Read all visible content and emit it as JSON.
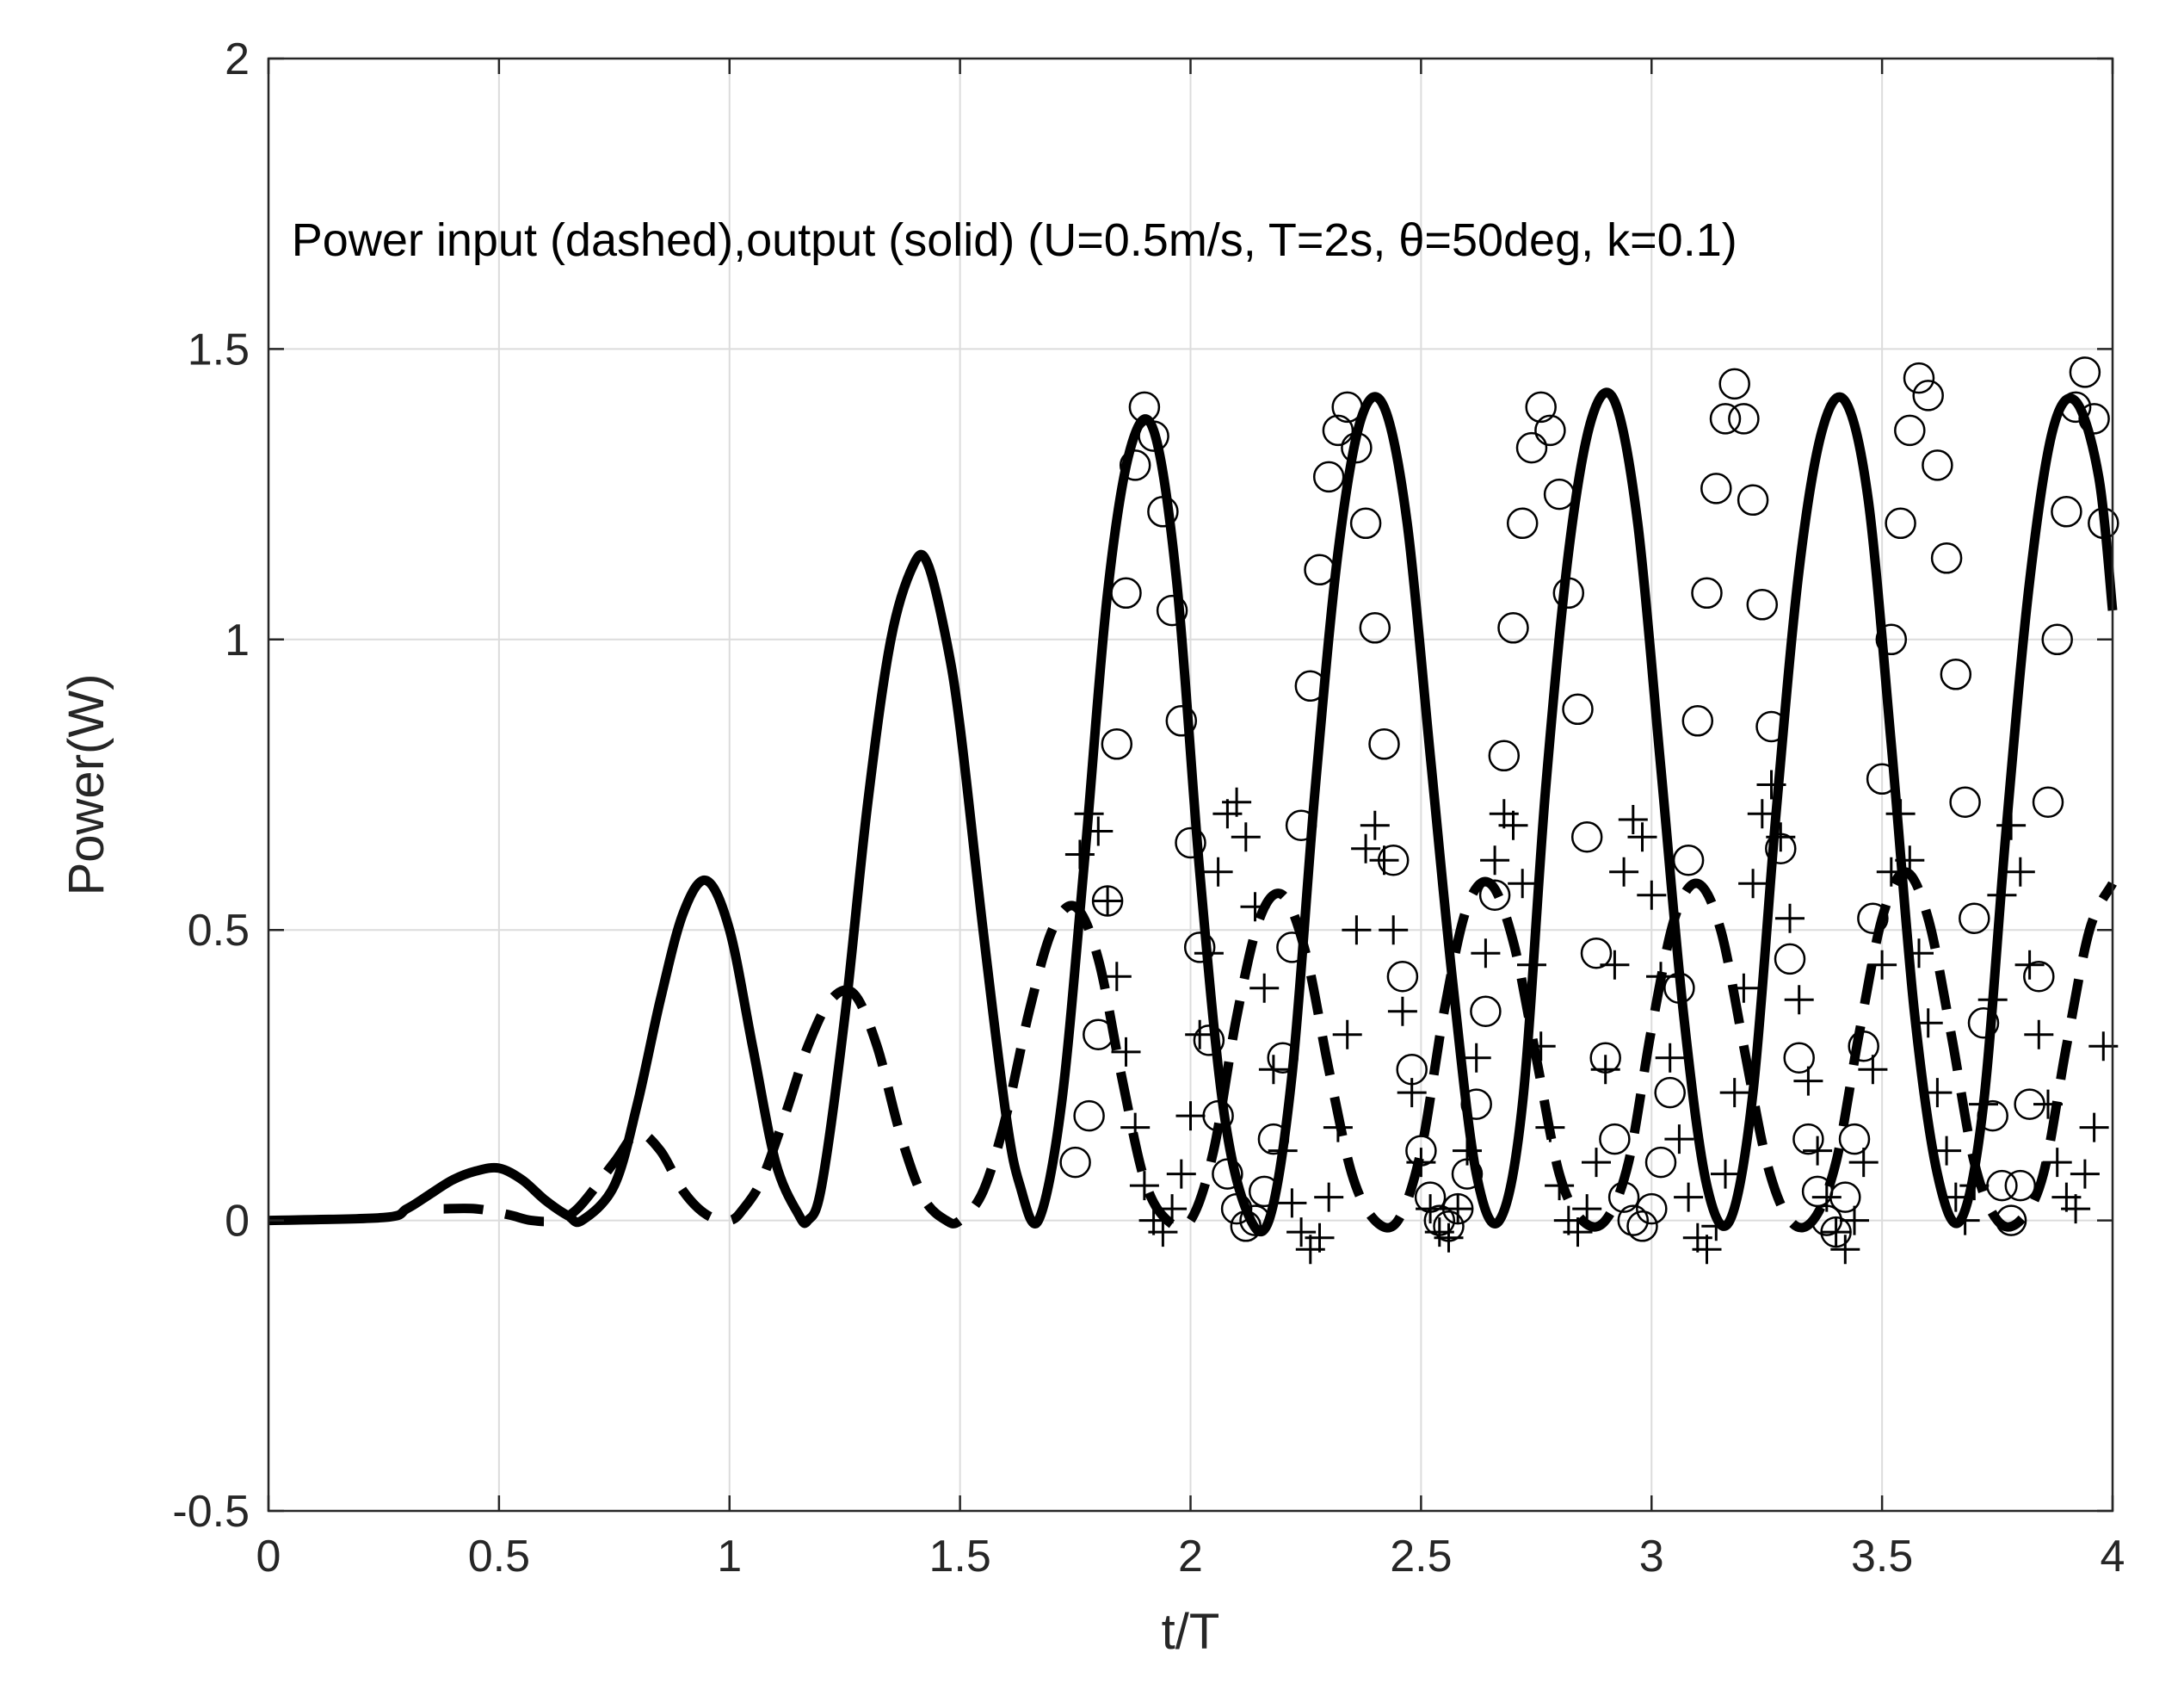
{
  "chart_data": {
    "type": "line",
    "title": "",
    "xlabel": "t/T",
    "ylabel": "Power(W)",
    "annotation": "Power input (dashed),output (solid) (U=0.5m/s, T=2s, θ=50deg, k=0.1)",
    "xlim": [
      0,
      4
    ],
    "ylim": [
      -0.5,
      2
    ],
    "xticks": [
      0,
      0.5,
      1,
      1.5,
      2,
      2.5,
      3,
      3.5,
      4
    ],
    "xtick_labels": [
      "0",
      "0.5",
      "1",
      "1.5",
      "2",
      "2.5",
      "3",
      "3.5",
      "4"
    ],
    "yticks": [
      -0.5,
      0,
      0.5,
      1,
      1.5,
      2
    ],
    "ytick_labels": [
      "-0.5",
      "0",
      "0.5",
      "1",
      "1.5",
      "2"
    ],
    "grid": true,
    "colors": {
      "lines": "#000000",
      "grid": "#dcdcdc",
      "axes": "#262626"
    },
    "series": [
      {
        "style": "solid",
        "x": [
          0,
          0.25,
          0.3,
          0.35,
          0.4,
          0.45,
          0.5,
          0.55,
          0.6,
          0.65,
          0.68,
          0.75,
          0.8,
          0.85,
          0.9,
          0.95,
          1.0,
          1.05,
          1.1,
          1.15,
          1.17,
          1.2,
          1.25,
          1.3,
          1.35,
          1.4,
          1.43,
          1.47,
          1.5,
          1.55,
          1.6,
          1.63,
          1.67,
          1.72,
          1.77,
          1.82,
          1.87,
          1.92,
          1.97,
          2.02,
          2.07,
          2.12,
          2.17,
          2.22,
          2.27,
          2.32,
          2.37,
          2.42,
          2.47,
          2.52,
          2.57,
          2.62,
          2.67,
          2.72,
          2.77,
          2.82,
          2.87,
          2.92,
          2.97,
          3.02,
          3.07,
          3.12,
          3.17,
          3.22,
          3.27,
          3.32,
          3.37,
          3.42,
          3.47,
          3.52,
          3.57,
          3.62,
          3.67,
          3.72,
          3.77,
          3.82,
          3.87,
          3.92,
          3.97,
          4.0
        ],
        "y": [
          0,
          0.005,
          0.02,
          0.045,
          0.07,
          0.085,
          0.09,
          0.07,
          0.035,
          0.008,
          0.0,
          0.06,
          0.2,
          0.38,
          0.53,
          0.585,
          0.5,
          0.3,
          0.1,
          0.01,
          0.0,
          0.06,
          0.35,
          0.72,
          1.0,
          1.13,
          1.13,
          1.0,
          0.85,
          0.5,
          0.18,
          0.06,
          0.0,
          0.2,
          0.62,
          1.08,
          1.33,
          1.36,
          1.1,
          0.6,
          0.2,
          0.02,
          0.0,
          0.25,
          0.74,
          1.15,
          1.38,
          1.4,
          1.2,
          0.8,
          0.4,
          0.08,
          0.0,
          0.2,
          0.74,
          1.15,
          1.38,
          1.41,
          1.2,
          0.78,
          0.35,
          0.06,
          0.0,
          0.22,
          0.7,
          1.12,
          1.36,
          1.41,
          1.24,
          0.82,
          0.36,
          0.08,
          0.0,
          0.2,
          0.68,
          1.1,
          1.36,
          1.41,
          1.28,
          1.05
        ]
      },
      {
        "style": "dashed",
        "x": [
          0.38,
          0.45,
          0.52,
          0.57,
          0.62,
          0.67,
          0.75,
          0.8,
          0.85,
          0.9,
          0.95,
          1.0,
          1.03,
          1.07,
          1.12,
          1.17,
          1.22,
          1.27,
          1.32,
          1.37,
          1.42,
          1.47,
          1.5,
          1.55,
          1.6,
          1.65,
          1.7,
          1.75,
          1.8,
          1.85,
          1.9,
          1.95,
          2.0,
          2.05,
          2.1,
          2.15,
          2.2,
          2.25,
          2.3,
          2.35,
          2.4,
          2.45,
          2.5,
          2.55,
          2.6,
          2.65,
          2.7,
          2.75,
          2.8,
          2.85,
          2.9,
          2.95,
          3.0,
          3.05,
          3.1,
          3.15,
          3.2,
          3.25,
          3.3,
          3.35,
          3.4,
          3.45,
          3.5,
          3.55,
          3.6,
          3.65,
          3.7,
          3.75,
          3.8,
          3.85,
          3.9,
          3.95,
          4.0
        ],
        "y": [
          0.02,
          0.02,
          0.01,
          0.0,
          0.0,
          0.02,
          0.1,
          0.15,
          0.12,
          0.05,
          0.01,
          0.0,
          0.02,
          0.07,
          0.18,
          0.3,
          0.38,
          0.39,
          0.3,
          0.15,
          0.04,
          0.0,
          0.0,
          0.05,
          0.18,
          0.36,
          0.5,
          0.54,
          0.45,
          0.25,
          0.07,
          0.0,
          0.0,
          0.12,
          0.35,
          0.52,
          0.56,
          0.46,
          0.26,
          0.08,
          0.0,
          0.0,
          0.12,
          0.36,
          0.54,
          0.58,
          0.48,
          0.28,
          0.08,
          0.0,
          0.0,
          0.1,
          0.33,
          0.52,
          0.58,
          0.5,
          0.3,
          0.1,
          0.0,
          0.0,
          0.1,
          0.32,
          0.52,
          0.6,
          0.52,
          0.32,
          0.1,
          0.0,
          0.0,
          0.08,
          0.3,
          0.5,
          0.58
        ]
      },
      {
        "style": "markers-circle",
        "x": [
          1.75,
          1.78,
          1.8,
          1.82,
          1.84,
          1.86,
          1.88,
          1.9,
          1.92,
          1.94,
          1.96,
          1.98,
          2.0,
          2.02,
          2.04,
          2.06,
          2.08,
          2.1,
          2.12,
          2.14,
          2.16,
          2.18,
          2.2,
          2.22,
          2.24,
          2.26,
          2.28,
          2.3,
          2.32,
          2.34,
          2.36,
          2.38,
          2.4,
          2.42,
          2.44,
          2.46,
          2.48,
          2.5,
          2.52,
          2.54,
          2.56,
          2.58,
          2.6,
          2.62,
          2.64,
          2.66,
          2.68,
          2.7,
          2.72,
          2.74,
          2.76,
          2.78,
          2.8,
          2.82,
          2.84,
          2.86,
          2.88,
          2.9,
          2.92,
          2.94,
          2.96,
          2.98,
          3.0,
          3.02,
          3.04,
          3.06,
          3.08,
          3.1,
          3.12,
          3.14,
          3.16,
          3.18,
          3.2,
          3.22,
          3.24,
          3.26,
          3.28,
          3.3,
          3.32,
          3.34,
          3.36,
          3.38,
          3.4,
          3.42,
          3.44,
          3.46,
          3.48,
          3.5,
          3.52,
          3.54,
          3.56,
          3.58,
          3.6,
          3.62,
          3.64,
          3.66,
          3.68,
          3.7,
          3.72,
          3.74,
          3.76,
          3.78,
          3.8,
          3.82,
          3.84,
          3.86,
          3.88,
          3.9,
          3.92,
          3.94,
          3.96,
          3.98
        ],
        "y": [
          0.1,
          0.18,
          0.32,
          0.55,
          0.82,
          1.08,
          1.3,
          1.4,
          1.35,
          1.22,
          1.05,
          0.86,
          0.65,
          0.47,
          0.31,
          0.18,
          0.08,
          0.02,
          -0.01,
          0.0,
          0.05,
          0.14,
          0.28,
          0.47,
          0.68,
          0.92,
          1.12,
          1.28,
          1.36,
          1.4,
          1.33,
          1.2,
          1.02,
          0.82,
          0.62,
          0.42,
          0.26,
          0.12,
          0.04,
          0.0,
          -0.01,
          0.02,
          0.08,
          0.2,
          0.36,
          0.56,
          0.8,
          1.02,
          1.2,
          1.33,
          1.4,
          1.36,
          1.25,
          1.08,
          0.88,
          0.66,
          0.46,
          0.28,
          0.14,
          0.04,
          0.0,
          -0.01,
          0.02,
          0.1,
          0.22,
          0.4,
          0.62,
          0.86,
          1.08,
          1.26,
          1.38,
          1.44,
          1.38,
          1.24,
          1.06,
          0.85,
          0.64,
          0.45,
          0.28,
          0.14,
          0.05,
          0.0,
          -0.02,
          0.04,
          0.14,
          0.3,
          0.52,
          0.76,
          1.0,
          1.2,
          1.36,
          1.45,
          1.42,
          1.3,
          1.14,
          0.94,
          0.72,
          0.52,
          0.34,
          0.18,
          0.06,
          0.0,
          0.06,
          0.2,
          0.42,
          0.72,
          1.0,
          1.22,
          1.4,
          1.46,
          1.38,
          1.2
        ]
      },
      {
        "style": "markers-plus",
        "x": [
          1.76,
          1.78,
          1.8,
          1.82,
          1.84,
          1.86,
          1.88,
          1.9,
          1.92,
          1.94,
          1.96,
          1.98,
          2.0,
          2.02,
          2.04,
          2.06,
          2.08,
          2.1,
          2.12,
          2.14,
          2.16,
          2.18,
          2.2,
          2.22,
          2.24,
          2.26,
          2.28,
          2.3,
          2.32,
          2.34,
          2.36,
          2.38,
          2.4,
          2.42,
          2.44,
          2.46,
          2.48,
          2.5,
          2.52,
          2.54,
          2.56,
          2.58,
          2.6,
          2.62,
          2.64,
          2.66,
          2.68,
          2.7,
          2.72,
          2.74,
          2.76,
          2.78,
          2.8,
          2.82,
          2.84,
          2.86,
          2.88,
          2.9,
          2.92,
          2.94,
          2.96,
          2.98,
          3.0,
          3.02,
          3.04,
          3.06,
          3.08,
          3.1,
          3.12,
          3.14,
          3.16,
          3.18,
          3.2,
          3.22,
          3.24,
          3.26,
          3.28,
          3.3,
          3.32,
          3.34,
          3.36,
          3.38,
          3.4,
          3.42,
          3.44,
          3.46,
          3.48,
          3.5,
          3.52,
          3.54,
          3.56,
          3.58,
          3.6,
          3.62,
          3.64,
          3.66,
          3.68,
          3.7,
          3.72,
          3.74,
          3.76,
          3.78,
          3.8,
          3.82,
          3.84,
          3.86,
          3.88,
          3.9,
          3.92,
          3.94,
          3.96,
          3.98
        ],
        "y": [
          0.63,
          0.7,
          0.67,
          0.55,
          0.42,
          0.29,
          0.16,
          0.06,
          0.0,
          -0.02,
          0.02,
          0.08,
          0.18,
          0.32,
          0.46,
          0.6,
          0.7,
          0.72,
          0.66,
          0.54,
          0.4,
          0.26,
          0.12,
          0.03,
          -0.02,
          -0.05,
          -0.03,
          0.04,
          0.16,
          0.32,
          0.5,
          0.64,
          0.68,
          0.62,
          0.5,
          0.36,
          0.22,
          0.1,
          0.02,
          -0.02,
          -0.03,
          0.02,
          0.12,
          0.28,
          0.46,
          0.62,
          0.7,
          0.68,
          0.58,
          0.44,
          0.3,
          0.16,
          0.06,
          0.0,
          -0.02,
          0.02,
          0.1,
          0.26,
          0.44,
          0.6,
          0.69,
          0.66,
          0.56,
          0.42,
          0.28,
          0.14,
          0.04,
          -0.03,
          -0.05,
          -0.01,
          0.08,
          0.22,
          0.4,
          0.58,
          0.7,
          0.75,
          0.66,
          0.52,
          0.38,
          0.24,
          0.12,
          0.04,
          -0.02,
          -0.05,
          0.0,
          0.1,
          0.26,
          0.44,
          0.6,
          0.7,
          0.62,
          0.46,
          0.34,
          0.22,
          0.12,
          0.04,
          0.0,
          0.06,
          0.2,
          0.38,
          0.56,
          0.68,
          0.6,
          0.44,
          0.32,
          0.2,
          0.1,
          0.04,
          0.02,
          0.08,
          0.16,
          0.3
        ]
      }
    ]
  }
}
